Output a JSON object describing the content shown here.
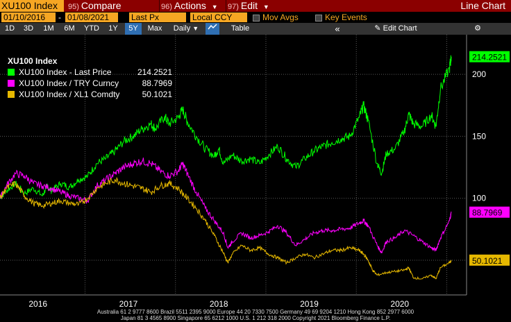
{
  "toolbar": {
    "ticker": "XU100 Index",
    "compare_num": "95)",
    "compare": "Compare",
    "actions_num": "96)",
    "actions": "Actions",
    "edit_num": "97)",
    "edit": "Edit",
    "chart_title": "Line Chart"
  },
  "settings": {
    "start_date": "01/10/2016",
    "end_date": "01/08/2021",
    "field": "Last Px",
    "currency": "Local CCY",
    "mov_avgs": "Mov Avgs",
    "key_events": "Key Events"
  },
  "periods": {
    "items": [
      "1D",
      "3D",
      "1M",
      "6M",
      "YTD",
      "1Y",
      "5Y",
      "Max"
    ],
    "active": "5Y",
    "frequency": "Daily",
    "table": "Table",
    "edit_chart": "Edit Chart"
  },
  "legend": {
    "title": "XU100 Index",
    "entries": [
      {
        "name": "XU100 Index - Last Price",
        "value": "214.2521",
        "color": "#00ff00"
      },
      {
        "name": "XU100 Index / TRY Curncy",
        "value": "88.7969",
        "color": "#ff00ff"
      },
      {
        "name": "XU100 Index / XL1 Comdty",
        "value": "50.1021",
        "color": "#e6b800"
      }
    ]
  },
  "colors": {
    "green": "#00ff00",
    "magenta": "#ff00ff",
    "gold": "#e6b800",
    "accent": "#f5a623",
    "bar": "#8b0000"
  },
  "footer": {
    "line1": "Australia 61 2 9777 8600 Brazil 5511 2395 9000 Europe 44 20 7330 7500 Germany 49 69 9204 1210 Hong Kong 852 2977 6000",
    "line2": "Japan 81 3 4565 8900        Singapore 65 6212 1000        U.S. 1 212 318 2000        Copyright 2021 Bloomberg Finance L.P."
  },
  "chart_data": {
    "type": "line",
    "x_ticks": [
      "2016",
      "2017",
      "2018",
      "2019",
      "2020"
    ],
    "y_ticks": [
      100,
      150,
      200
    ],
    "ylim": [
      22,
      232
    ],
    "xlim": [
      2016.03,
      2021.02
    ],
    "last_values": [
      "214.2521",
      "88.7969",
      "50.1021"
    ],
    "series": [
      {
        "name": "XU100 Index - Last Price",
        "color": "#00ff00",
        "points": [
          [
            2016.03,
            100
          ],
          [
            2016.1,
            106
          ],
          [
            2016.2,
            112
          ],
          [
            2016.3,
            104
          ],
          [
            2016.4,
            108
          ],
          [
            2016.5,
            102
          ],
          [
            2016.55,
            110
          ],
          [
            2016.6,
            106
          ],
          [
            2016.7,
            112
          ],
          [
            2016.8,
            109
          ],
          [
            2016.9,
            115
          ],
          [
            2017.0,
            118
          ],
          [
            2017.1,
            128
          ],
          [
            2017.2,
            132
          ],
          [
            2017.3,
            138
          ],
          [
            2017.4,
            146
          ],
          [
            2017.5,
            150
          ],
          [
            2017.6,
            156
          ],
          [
            2017.7,
            160
          ],
          [
            2017.75,
            156
          ],
          [
            2017.85,
            166
          ],
          [
            2017.9,
            160
          ],
          [
            2018.0,
            165
          ],
          [
            2018.05,
            172
          ],
          [
            2018.1,
            162
          ],
          [
            2018.2,
            150
          ],
          [
            2018.3,
            140
          ],
          [
            2018.4,
            134
          ],
          [
            2018.45,
            140
          ],
          [
            2018.5,
            128
          ],
          [
            2018.6,
            135
          ],
          [
            2018.7,
            130
          ],
          [
            2018.8,
            132
          ],
          [
            2018.9,
            128
          ],
          [
            2019.0,
            135
          ],
          [
            2019.1,
            142
          ],
          [
            2019.2,
            132
          ],
          [
            2019.3,
            125
          ],
          [
            2019.4,
            132
          ],
          [
            2019.5,
            138
          ],
          [
            2019.6,
            142
          ],
          [
            2019.7,
            145
          ],
          [
            2019.8,
            148
          ],
          [
            2019.9,
            150
          ],
          [
            2020.0,
            165
          ],
          [
            2020.05,
            175
          ],
          [
            2020.1,
            163
          ],
          [
            2020.2,
            128
          ],
          [
            2020.25,
            120
          ],
          [
            2020.3,
            136
          ],
          [
            2020.4,
            140
          ],
          [
            2020.5,
            154
          ],
          [
            2020.55,
            168
          ],
          [
            2020.6,
            160
          ],
          [
            2020.7,
            158
          ],
          [
            2020.8,
            167
          ],
          [
            2020.85,
            158
          ],
          [
            2020.9,
            188
          ],
          [
            2021.0,
            205
          ],
          [
            2021.02,
            214.25
          ]
        ]
      },
      {
        "name": "XU100 Index / TRY Curncy",
        "color": "#ff00ff",
        "points": [
          [
            2016.03,
            100
          ],
          [
            2016.1,
            110
          ],
          [
            2016.2,
            120
          ],
          [
            2016.3,
            118
          ],
          [
            2016.4,
            112
          ],
          [
            2016.5,
            110
          ],
          [
            2016.6,
            108
          ],
          [
            2016.7,
            105
          ],
          [
            2016.8,
            102
          ],
          [
            2016.9,
            100
          ],
          [
            2017.0,
            98
          ],
          [
            2017.1,
            110
          ],
          [
            2017.2,
            115
          ],
          [
            2017.3,
            120
          ],
          [
            2017.4,
            125
          ],
          [
            2017.5,
            128
          ],
          [
            2017.6,
            130
          ],
          [
            2017.7,
            128
          ],
          [
            2017.8,
            122
          ],
          [
            2017.9,
            118
          ],
          [
            2018.0,
            122
          ],
          [
            2018.05,
            128
          ],
          [
            2018.1,
            120
          ],
          [
            2018.2,
            105
          ],
          [
            2018.3,
            92
          ],
          [
            2018.4,
            82
          ],
          [
            2018.5,
            72
          ],
          [
            2018.55,
            60
          ],
          [
            2018.6,
            65
          ],
          [
            2018.7,
            72
          ],
          [
            2018.8,
            68
          ],
          [
            2018.9,
            70
          ],
          [
            2019.0,
            73
          ],
          [
            2019.1,
            78
          ],
          [
            2019.2,
            72
          ],
          [
            2019.3,
            62
          ],
          [
            2019.4,
            67
          ],
          [
            2019.5,
            72
          ],
          [
            2019.6,
            74
          ],
          [
            2019.7,
            74
          ],
          [
            2019.8,
            75
          ],
          [
            2019.9,
            76
          ],
          [
            2020.0,
            80
          ],
          [
            2020.05,
            82
          ],
          [
            2020.1,
            78
          ],
          [
            2020.2,
            62
          ],
          [
            2020.25,
            56
          ],
          [
            2020.3,
            65
          ],
          [
            2020.4,
            68
          ],
          [
            2020.5,
            74
          ],
          [
            2020.6,
            70
          ],
          [
            2020.7,
            65
          ],
          [
            2020.8,
            60
          ],
          [
            2020.85,
            58
          ],
          [
            2020.9,
            68
          ],
          [
            2021.0,
            82
          ],
          [
            2021.02,
            88.8
          ]
        ]
      },
      {
        "name": "XU100 Index / XL1 Comdty",
        "color": "#e6b800",
        "points": [
          [
            2016.03,
            100
          ],
          [
            2016.1,
            108
          ],
          [
            2016.2,
            112
          ],
          [
            2016.3,
            102
          ],
          [
            2016.4,
            96
          ],
          [
            2016.5,
            94
          ],
          [
            2016.6,
            96
          ],
          [
            2016.7,
            98
          ],
          [
            2016.8,
            96
          ],
          [
            2016.9,
            95
          ],
          [
            2017.0,
            100
          ],
          [
            2017.1,
            108
          ],
          [
            2017.2,
            112
          ],
          [
            2017.3,
            115
          ],
          [
            2017.4,
            112
          ],
          [
            2017.5,
            110
          ],
          [
            2017.6,
            108
          ],
          [
            2017.7,
            105
          ],
          [
            2017.8,
            110
          ],
          [
            2017.9,
            112
          ],
          [
            2018.0,
            108
          ],
          [
            2018.1,
            100
          ],
          [
            2018.2,
            92
          ],
          [
            2018.3,
            82
          ],
          [
            2018.4,
            70
          ],
          [
            2018.5,
            56
          ],
          [
            2018.55,
            48
          ],
          [
            2018.6,
            55
          ],
          [
            2018.7,
            62
          ],
          [
            2018.8,
            58
          ],
          [
            2018.9,
            60
          ],
          [
            2019.0,
            55
          ],
          [
            2019.1,
            52
          ],
          [
            2019.2,
            48
          ],
          [
            2019.3,
            52
          ],
          [
            2019.4,
            55
          ],
          [
            2019.5,
            52
          ],
          [
            2019.6,
            55
          ],
          [
            2019.7,
            58
          ],
          [
            2019.8,
            58
          ],
          [
            2019.9,
            60
          ],
          [
            2020.0,
            58
          ],
          [
            2020.05,
            55
          ],
          [
            2020.1,
            50
          ],
          [
            2020.15,
            42
          ],
          [
            2020.2,
            38
          ],
          [
            2020.3,
            40
          ],
          [
            2020.4,
            41
          ],
          [
            2020.5,
            42
          ],
          [
            2020.55,
            44
          ],
          [
            2020.6,
            36
          ],
          [
            2020.7,
            35
          ],
          [
            2020.8,
            38
          ],
          [
            2020.85,
            35
          ],
          [
            2020.9,
            44
          ],
          [
            2021.0,
            48
          ],
          [
            2021.02,
            50.1
          ]
        ]
      }
    ]
  }
}
